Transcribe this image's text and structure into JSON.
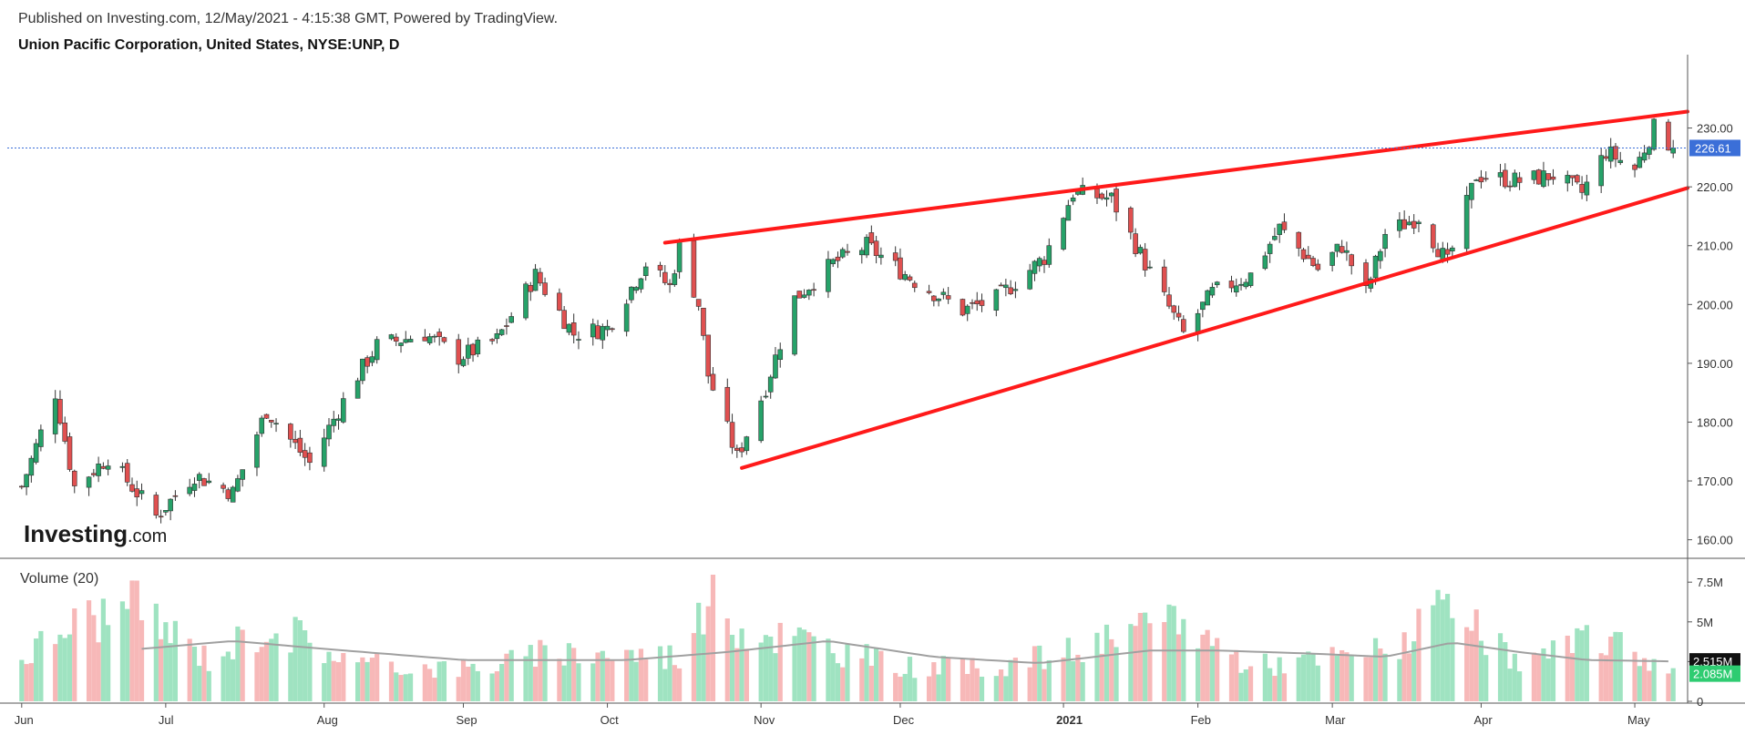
{
  "header": {
    "published": "Published on Investing.com, 12/May/2021 - 4:15:38 GMT, Powered by TradingView.",
    "title": "Union Pacific Corporation, United States, NYSE:UNP, D"
  },
  "logo": {
    "main": "Investing",
    "sub": ".com"
  },
  "volume_panel": {
    "label": "Volume (20)"
  },
  "colors": {
    "up": "#26a269",
    "down": "#e05050",
    "up_volume": "#9fe3c1",
    "down_volume": "#f7b8b8",
    "trendline": "#ff1a1a",
    "last_price_line": "#3b6fd8",
    "volume_ma": "#a0a0a0",
    "axis": "#555555"
  },
  "chart_data": [
    {
      "type": "candlestick",
      "title": "Union Pacific Corporation, United States, NYSE:UNP, D",
      "x_labels": [
        "Jun",
        "Jul",
        "Aug",
        "Sep",
        "Oct",
        "Nov",
        "Dec",
        "2021",
        "Feb",
        "Mar",
        "Apr",
        "May"
      ],
      "y_ticks": [
        "160.00",
        "170.00",
        "180.00",
        "190.00",
        "200.00",
        "210.00",
        "220.00",
        "230.00"
      ],
      "ylim": [
        157,
        240
      ],
      "last_price": "226.61",
      "close_path": [
        [
          "2020-06-01",
          169
        ],
        [
          "2020-06-08",
          185
        ],
        [
          "2020-06-12",
          169
        ],
        [
          "2020-06-19",
          174
        ],
        [
          "2020-06-29",
          164
        ],
        [
          "2020-07-07",
          171
        ],
        [
          "2020-07-15",
          168
        ],
        [
          "2020-07-22",
          182
        ],
        [
          "2020-07-31",
          173
        ],
        [
          "2020-08-10",
          188
        ],
        [
          "2020-08-14",
          193
        ],
        [
          "2020-08-24",
          195
        ],
        [
          "2020-08-31",
          191
        ],
        [
          "2020-09-08",
          194
        ],
        [
          "2020-09-16",
          205
        ],
        [
          "2020-09-24",
          195
        ],
        [
          "2020-10-01",
          196
        ],
        [
          "2020-10-09",
          207
        ],
        [
          "2020-10-14",
          203
        ],
        [
          "2020-10-16",
          210
        ],
        [
          "2020-10-20",
          200
        ],
        [
          "2020-10-22",
          188
        ],
        [
          "2020-10-28",
          174
        ],
        [
          "2020-11-03",
          186
        ],
        [
          "2020-11-09",
          201
        ],
        [
          "2020-11-17",
          207
        ],
        [
          "2020-11-24",
          210
        ],
        [
          "2020-12-04",
          204
        ],
        [
          "2020-12-14",
          199
        ],
        [
          "2020-12-21",
          201
        ],
        [
          "2020-12-31",
          208
        ],
        [
          "2021-01-06",
          219
        ],
        [
          "2021-01-14",
          218
        ],
        [
          "2021-01-21",
          207
        ],
        [
          "2021-01-29",
          195
        ],
        [
          "2021-02-04",
          202
        ],
        [
          "2021-02-12",
          205
        ],
        [
          "2021-02-18",
          213
        ],
        [
          "2021-02-26",
          206
        ],
        [
          "2021-03-03",
          210
        ],
        [
          "2021-03-08",
          202
        ],
        [
          "2021-03-12",
          212
        ],
        [
          "2021-03-19",
          215
        ],
        [
          "2021-03-25",
          207
        ],
        [
          "2021-03-31",
          222
        ],
        [
          "2021-04-09",
          221
        ],
        [
          "2021-04-16",
          222
        ],
        [
          "2021-04-22",
          219
        ],
        [
          "2021-04-27",
          226
        ],
        [
          "2021-05-03",
          223
        ],
        [
          "2021-05-07",
          230
        ],
        [
          "2021-05-11",
          226.61
        ]
      ],
      "trendlines": [
        {
          "name": "upper",
          "points": [
            [
              "2020-10-13",
              210.5
            ],
            [
              "2021-05-14",
              232.8
            ]
          ]
        },
        {
          "name": "lower",
          "points": [
            [
              "2020-10-29",
              172.2
            ],
            [
              "2021-05-14",
              219.8
            ]
          ]
        }
      ]
    },
    {
      "type": "bar",
      "title": "Volume (20)",
      "y_ticks": [
        "0",
        "2.5M",
        "5M",
        "7.5M"
      ],
      "ylim": [
        0,
        8.6
      ],
      "moving_average_label": "2.515M",
      "last_volume_label": "2.085M",
      "volume_path_millions": [
        [
          "2020-06-01",
          3.0
        ],
        [
          "2020-06-12",
          5.6
        ],
        [
          "2020-06-25",
          6.5
        ],
        [
          "2020-07-10",
          3.0
        ],
        [
          "2020-07-23",
          5.5
        ],
        [
          "2020-08-10",
          2.6
        ],
        [
          "2020-09-03",
          2.3
        ],
        [
          "2020-09-21",
          3.5
        ],
        [
          "2020-10-16",
          3.2
        ],
        [
          "2020-10-22",
          7.0
        ],
        [
          "2020-10-30",
          5.0
        ],
        [
          "2020-11-09",
          4.5
        ],
        [
          "2020-11-30",
          2.5
        ],
        [
          "2020-12-18",
          2.3
        ],
        [
          "2021-01-06",
          3.5
        ],
        [
          "2021-01-21",
          4.8
        ],
        [
          "2021-01-27",
          6.0
        ],
        [
          "2021-02-12",
          2.5
        ],
        [
          "2021-03-01",
          3.0
        ],
        [
          "2021-03-12",
          3.6
        ],
        [
          "2021-03-25",
          6.3
        ],
        [
          "2021-04-09",
          2.6
        ],
        [
          "2021-04-27",
          4.5
        ],
        [
          "2021-05-11",
          2.085
        ]
      ],
      "ma_path_millions": [
        [
          "2020-06-26",
          3.3
        ],
        [
          "2020-07-15",
          3.8
        ],
        [
          "2020-08-03",
          3.3
        ],
        [
          "2020-09-01",
          2.6
        ],
        [
          "2020-10-05",
          2.6
        ],
        [
          "2020-10-26",
          3.1
        ],
        [
          "2020-11-16",
          3.8
        ],
        [
          "2020-12-08",
          2.8
        ],
        [
          "2020-12-30",
          2.4
        ],
        [
          "2021-01-22",
          3.2
        ],
        [
          "2021-02-05",
          3.2
        ],
        [
          "2021-02-25",
          3.0
        ],
        [
          "2021-03-12",
          2.8
        ],
        [
          "2021-03-26",
          3.7
        ],
        [
          "2021-04-09",
          3.1
        ],
        [
          "2021-04-23",
          2.6
        ],
        [
          "2021-05-11",
          2.515
        ]
      ]
    }
  ]
}
